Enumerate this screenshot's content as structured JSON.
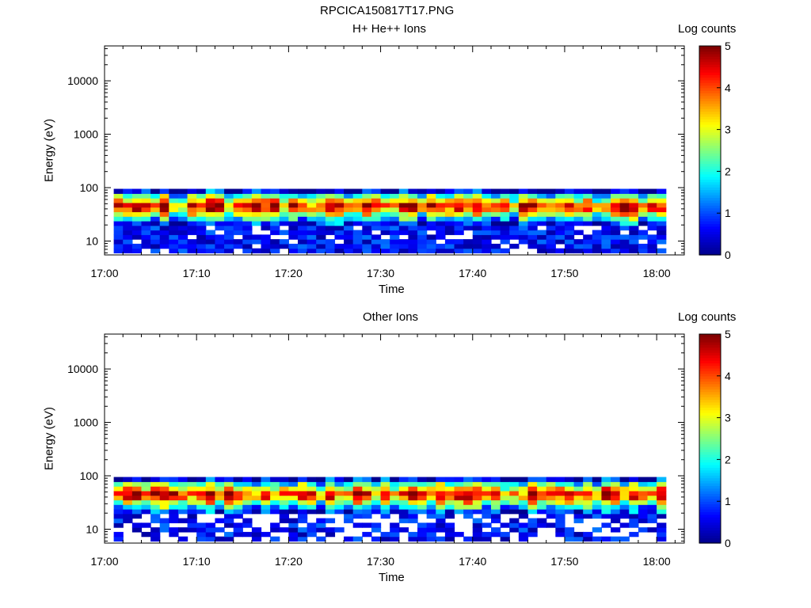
{
  "figure_title": "RPCICA150817T17.PNG",
  "colors": {
    "colormap": [
      "#00008f",
      "#0000ff",
      "#0080ff",
      "#00ffff",
      "#80ff80",
      "#ffff00",
      "#ff8000",
      "#ff0000",
      "#800000"
    ]
  },
  "chart_data": [
    {
      "type": "heatmap",
      "title": "H+ He++ Ions",
      "xlabel": "Time",
      "ylabel": "Energy (eV)",
      "x_ticks": [
        "17:00",
        "17:10",
        "17:20",
        "17:30",
        "17:40",
        "17:50",
        "18:00"
      ],
      "y_ticks": [
        "10",
        "100",
        "1000",
        "10000"
      ],
      "y_scale": "log",
      "ylim": [
        5.5,
        45000
      ],
      "xlim": [
        "17:00",
        "18:03"
      ],
      "colorbar": {
        "label": "Log counts",
        "ticks": [
          "0",
          "1",
          "2",
          "3",
          "4",
          "5"
        ],
        "range": [
          0,
          5
        ]
      },
      "energy_range_eV": [
        6,
        95
      ],
      "peak_energy_eV": 45,
      "notes": "Data present from about 17:01 to 18:01; strong flux (log counts 4-5) near 30-60 eV, low counts below 20 eV"
    },
    {
      "type": "heatmap",
      "title": "Other Ions",
      "xlabel": "Time",
      "ylabel": "Energy (eV)",
      "x_ticks": [
        "17:00",
        "17:10",
        "17:20",
        "17:30",
        "17:40",
        "17:50",
        "18:00"
      ],
      "y_ticks": [
        "10",
        "100",
        "1000",
        "10000"
      ],
      "y_scale": "log",
      "ylim": [
        5.5,
        45000
      ],
      "xlim": [
        "17:00",
        "18:03"
      ],
      "colorbar": {
        "label": "Log counts",
        "ticks": [
          "0",
          "1",
          "2",
          "3",
          "4",
          "5"
        ],
        "range": [
          0,
          5
        ]
      },
      "energy_range_eV": [
        6,
        95
      ],
      "peak_energy_eV": 45,
      "notes": "Similar band 20-95 eV; sparse low counts below 20 eV with gaps; vertical streaks near 17:30-17:32 and 17:48"
    }
  ]
}
